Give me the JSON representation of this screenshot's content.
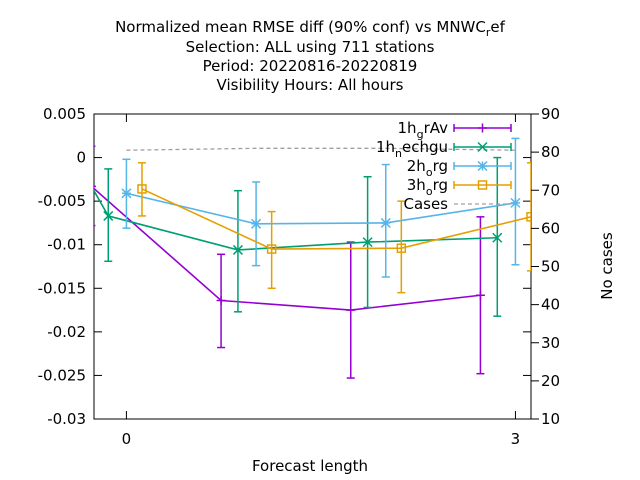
{
  "chart_data": {
    "type": "line",
    "title_lines": [
      "Normalized mean RMSE diff (90% conf) vs MNWC_ref",
      "Selection: ALL using   711 stations",
      "Period: 20220816-20220819",
      "Visibility   Hours:  All hours"
    ],
    "title_parts": {
      "main": "Normalized mean RMSE diff (90% conf) vs MNWC",
      "sub_r": "r",
      "tail": "ef"
    },
    "xlabel": "Forecast length",
    "ylabel": "",
    "y2label": "No cases",
    "xlim": [
      -0.25,
      3.12
    ],
    "ylim": [
      -0.03,
      0.005
    ],
    "y2lim": [
      10,
      90
    ],
    "xticks": [
      0,
      3
    ],
    "xtick_labels": [
      "0",
      "3"
    ],
    "yticks": [
      0.005,
      0,
      -0.005,
      -0.01,
      -0.015,
      -0.02,
      -0.025,
      -0.03
    ],
    "ytick_labels": [
      "0.005",
      "0",
      "-0.005",
      "-0.01",
      "-0.015",
      "-0.02",
      "-0.025",
      "-0.03"
    ],
    "y2ticks": [
      90,
      80,
      70,
      60,
      50,
      40,
      30,
      20,
      10
    ],
    "y2tick_labels": [
      "90",
      "80",
      "70",
      "60",
      "50",
      "40",
      "30",
      "20",
      "10"
    ],
    "legend_position": "top-right",
    "series": [
      {
        "name": "1h_grAv",
        "legend": {
          "a": "1h",
          "sub": "g",
          "b": "rAv"
        },
        "color": "#9400d3",
        "marker": "plus",
        "x": [
          -0.27,
          0.73,
          1.73,
          2.73
        ],
        "y": [
          -0.0033,
          -0.0164,
          -0.0175,
          -0.0158
        ],
        "err_low": [
          -0.0078,
          -0.0218,
          -0.0253,
          -0.0248
        ],
        "err_high": [
          0.0013,
          -0.0111,
          -0.0097,
          -0.0068
        ]
      },
      {
        "name": "1h_nechgu",
        "legend": {
          "a": "1h",
          "sub": "n",
          "b": "echgu"
        },
        "color": "#009e73",
        "marker": "cross",
        "x": [
          -0.14,
          0.86,
          1.86,
          2.86
        ],
        "y": [
          -0.0067,
          -0.0106,
          -0.0097,
          -0.0092
        ],
        "err_low": [
          -0.0119,
          -0.0177,
          -0.0172,
          -0.0182
        ],
        "err_high": [
          -0.0013,
          -0.0038,
          -0.0022,
          0.0
        ],
        "connect_from": {
          "x": -0.27,
          "y": -0.0033
        }
      },
      {
        "name": "2h_org",
        "legend": {
          "a": "2h",
          "sub": "o",
          "b": "rg"
        },
        "color": "#56b4e9",
        "marker": "star",
        "x": [
          0.0,
          1.0,
          2.0,
          3.0
        ],
        "y": [
          -0.0041,
          -0.0076,
          -0.0075,
          -0.0052
        ],
        "err_low": [
          -0.0081,
          -0.0124,
          -0.0137,
          -0.0123
        ],
        "err_high": [
          -0.0002,
          -0.0028,
          -0.0008,
          0.0022
        ]
      },
      {
        "name": "3h_org",
        "legend": {
          "a": "3h",
          "sub": "o",
          "b": "rg"
        },
        "color": "#e69f00",
        "marker": "square",
        "x": [
          0.12,
          1.12,
          2.12,
          3.12
        ],
        "y": [
          -0.0036,
          -0.0105,
          -0.0104,
          -0.0068
        ],
        "err_low": [
          -0.0067,
          -0.015,
          -0.0155,
          -0.013
        ],
        "err_high": [
          -0.0006,
          -0.0062,
          -0.005,
          -0.0006
        ]
      }
    ],
    "cases": {
      "name": "Cases",
      "color": "#a0a0a0",
      "x": [
        0.0,
        1.0,
        2.0,
        3.0
      ],
      "y": [
        80.5,
        81.0,
        81.0,
        80.5
      ]
    }
  }
}
